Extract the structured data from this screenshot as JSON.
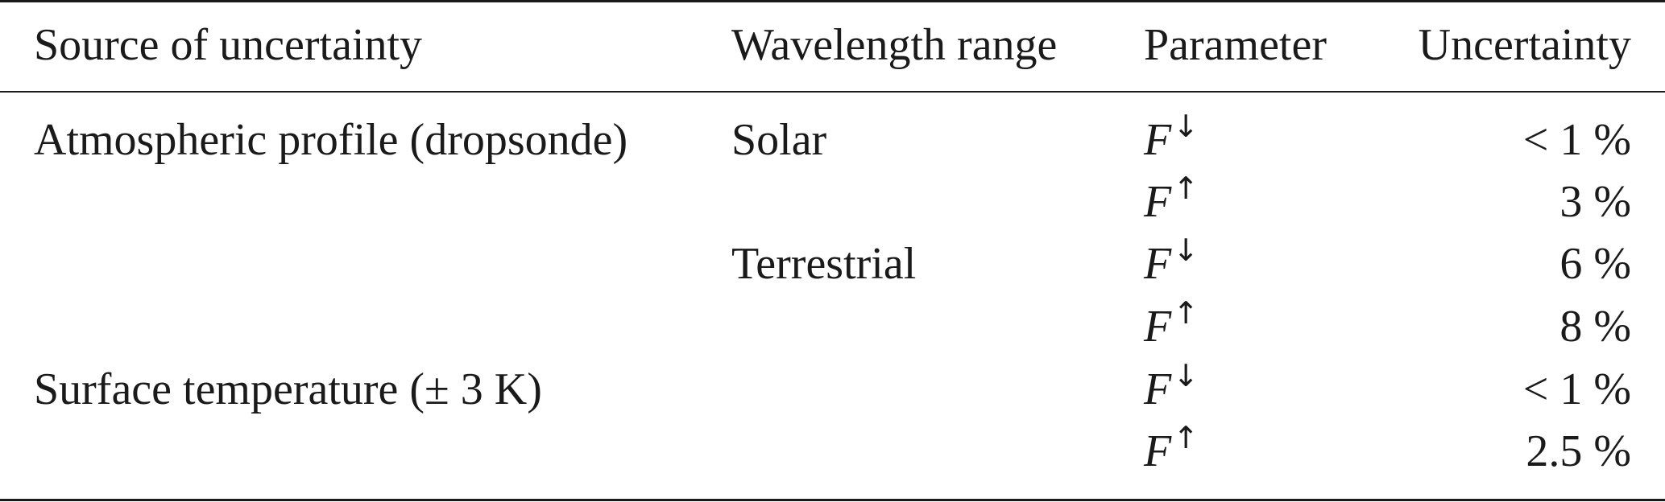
{
  "table": {
    "headers": {
      "source": "Source of uncertainty",
      "wavelength": "Wavelength range",
      "parameter": "Parameter",
      "uncertainty": "Uncertainty"
    },
    "rows": [
      {
        "source": "Atmospheric profile (dropsonde)",
        "wavelength": "Solar",
        "parameter": "F",
        "direction": "↓",
        "uncertainty": "< 1 %"
      },
      {
        "source": "",
        "wavelength": "",
        "parameter": "F",
        "direction": "↑",
        "uncertainty": "3 %"
      },
      {
        "source": "",
        "wavelength": "Terrestrial",
        "parameter": "F",
        "direction": "↓",
        "uncertainty": "6 %"
      },
      {
        "source": "",
        "wavelength": "",
        "parameter": "F",
        "direction": "↑",
        "uncertainty": "8 %"
      },
      {
        "source": "Surface temperature (± 3 K)",
        "wavelength": "",
        "parameter": "F",
        "direction": "↓",
        "uncertainty": "< 1 %"
      },
      {
        "source": "",
        "wavelength": "",
        "parameter": "F",
        "direction": "↑",
        "uncertainty": "2.5 %"
      }
    ]
  }
}
